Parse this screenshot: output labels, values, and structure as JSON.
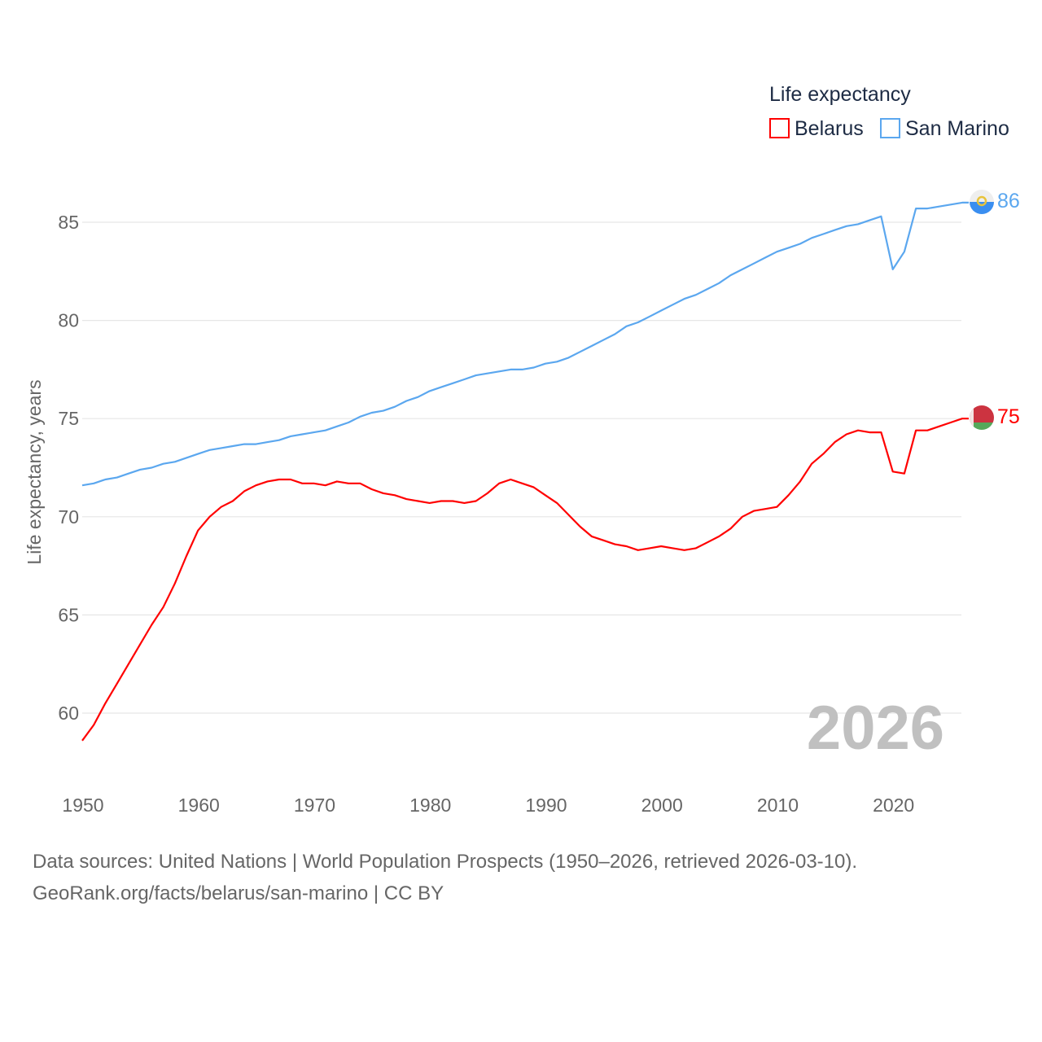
{
  "chart_data": {
    "type": "line",
    "ylabel": "Life expectancy, years",
    "xlabel": "",
    "xlim": [
      1950,
      2026
    ],
    "ylim_ticks": [
      60,
      65,
      70,
      75,
      80,
      85
    ],
    "x_ticks": [
      1950,
      1960,
      1970,
      1980,
      1990,
      2000,
      2010,
      2020
    ],
    "grid": true,
    "legend_title": "Life expectancy",
    "legend_position": "top-right",
    "year_watermark": "2026",
    "x": [
      1950,
      1951,
      1952,
      1953,
      1954,
      1955,
      1956,
      1957,
      1958,
      1959,
      1960,
      1961,
      1962,
      1963,
      1964,
      1965,
      1966,
      1967,
      1968,
      1969,
      1970,
      1971,
      1972,
      1973,
      1974,
      1975,
      1976,
      1977,
      1978,
      1979,
      1980,
      1981,
      1982,
      1983,
      1984,
      1985,
      1986,
      1987,
      1988,
      1989,
      1990,
      1991,
      1992,
      1993,
      1994,
      1995,
      1996,
      1997,
      1998,
      1999,
      2000,
      2001,
      2002,
      2003,
      2004,
      2005,
      2006,
      2007,
      2008,
      2009,
      2010,
      2011,
      2012,
      2013,
      2014,
      2015,
      2016,
      2017,
      2018,
      2019,
      2020,
      2021,
      2022,
      2023,
      2024,
      2025,
      2026
    ],
    "series": [
      {
        "name": "Belarus",
        "color": "#ff0000",
        "end_label": "75",
        "values": [
          58.6,
          59.4,
          60.5,
          61.5,
          62.5,
          63.5,
          64.5,
          65.4,
          66.6,
          68.0,
          69.3,
          70.0,
          70.5,
          70.8,
          71.3,
          71.6,
          71.8,
          71.9,
          71.9,
          71.7,
          71.7,
          71.6,
          71.8,
          71.7,
          71.7,
          71.4,
          71.2,
          71.1,
          70.9,
          70.8,
          70.7,
          70.8,
          70.8,
          70.7,
          70.8,
          71.2,
          71.7,
          71.9,
          71.7,
          71.5,
          71.1,
          70.7,
          70.1,
          69.5,
          69.0,
          68.8,
          68.6,
          68.5,
          68.3,
          68.4,
          68.5,
          68.4,
          68.3,
          68.4,
          68.7,
          69.0,
          69.4,
          70.0,
          70.3,
          70.4,
          70.5,
          71.1,
          71.8,
          72.7,
          73.2,
          73.8,
          74.2,
          74.4,
          74.3,
          74.3,
          72.3,
          72.2,
          74.4,
          74.4,
          74.6,
          74.8,
          75.0
        ]
      },
      {
        "name": "San Marino",
        "color": "#5ba7ef",
        "end_label": "86",
        "values": [
          71.6,
          71.7,
          71.9,
          72.0,
          72.2,
          72.4,
          72.5,
          72.7,
          72.8,
          73.0,
          73.2,
          73.4,
          73.5,
          73.6,
          73.7,
          73.7,
          73.8,
          73.9,
          74.1,
          74.2,
          74.3,
          74.4,
          74.6,
          74.8,
          75.1,
          75.3,
          75.4,
          75.6,
          75.9,
          76.1,
          76.4,
          76.6,
          76.8,
          77.0,
          77.2,
          77.3,
          77.4,
          77.5,
          77.5,
          77.6,
          77.8,
          77.9,
          78.1,
          78.4,
          78.7,
          79.0,
          79.3,
          79.7,
          79.9,
          80.2,
          80.5,
          80.8,
          81.1,
          81.3,
          81.6,
          81.9,
          82.3,
          82.6,
          82.9,
          83.2,
          83.5,
          83.7,
          83.9,
          84.2,
          84.4,
          84.6,
          84.8,
          84.9,
          85.1,
          85.3,
          82.6,
          83.5,
          85.7,
          85.7,
          85.8,
          85.9,
          86.0
        ]
      }
    ]
  },
  "source": {
    "line1": "Data sources: United Nations | World Population Prospects (1950–2026, retrieved 2026-03-10).",
    "line2": "GeoRank.org/facts/belarus/san-marino | CC BY"
  }
}
